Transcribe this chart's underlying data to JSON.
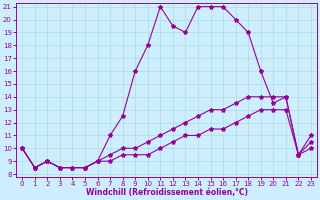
{
  "title": "",
  "xlabel": "Windchill (Refroidissement éolien,°C)",
  "x": [
    0,
    1,
    2,
    3,
    4,
    5,
    6,
    7,
    8,
    9,
    10,
    11,
    12,
    13,
    14,
    15,
    16,
    17,
    18,
    19,
    20,
    21,
    22,
    23
  ],
  "line1": [
    10,
    8.5,
    9.0,
    8.5,
    8.5,
    8.5,
    9.0,
    11.0,
    12.5,
    16.0,
    18.0,
    21.0,
    19.5,
    19.0,
    21.0,
    21.0,
    21.0,
    20.0,
    19.0,
    16.0,
    13.5,
    14.0,
    9.5,
    10.0
  ],
  "line2": [
    10,
    8.5,
    9.0,
    8.5,
    8.5,
    8.5,
    9.0,
    9.5,
    10.0,
    10.0,
    10.5,
    11.0,
    11.5,
    12.0,
    12.5,
    13.0,
    13.0,
    13.5,
    14.0,
    14.0,
    14.0,
    14.0,
    9.5,
    11.0
  ],
  "line3": [
    10,
    8.5,
    9.0,
    8.5,
    8.5,
    8.5,
    9.0,
    9.0,
    9.5,
    9.5,
    9.5,
    10.0,
    10.5,
    11.0,
    11.0,
    11.5,
    11.5,
    12.0,
    12.5,
    13.0,
    13.0,
    13.0,
    9.5,
    10.5
  ],
  "line_color": "#990099",
  "bg_color": "#cceeff",
  "grid_color": "#aadddd",
  "ylim": [
    8,
    21
  ],
  "xlim": [
    0,
    23
  ],
  "yticks": [
    8,
    9,
    10,
    11,
    12,
    13,
    14,
    15,
    16,
    17,
    18,
    19,
    20,
    21
  ],
  "xticks": [
    0,
    1,
    2,
    3,
    4,
    5,
    6,
    7,
    8,
    9,
    10,
    11,
    12,
    13,
    14,
    15,
    16,
    17,
    18,
    19,
    20,
    21,
    22,
    23
  ]
}
